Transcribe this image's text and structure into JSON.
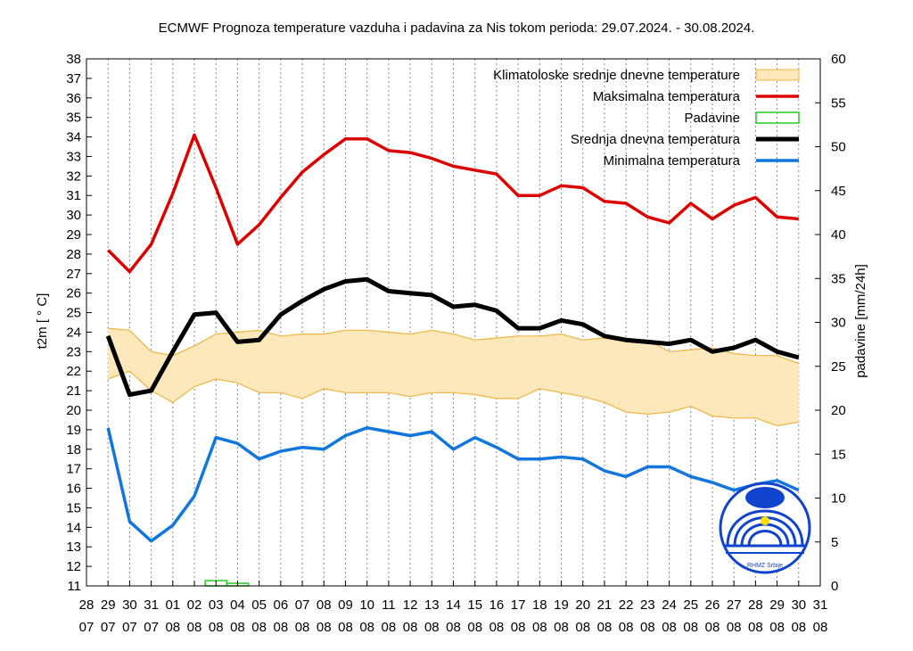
{
  "chart_data": {
    "type": "line",
    "title": "ECMWF Prognoza temperature  vazduha i padavina za Nis tokom perioda: 29.07.2024. - 30.08.2024.",
    "ylabel": "t2m [ ° C]",
    "y2label": "padavine [mm/24h]",
    "ylim": [
      11,
      38
    ],
    "y2lim": [
      0,
      60
    ],
    "yticks": [
      "11",
      "12",
      "13",
      "14",
      "15",
      "16",
      "17",
      "18",
      "19",
      "20",
      "21",
      "22",
      "23",
      "24",
      "25",
      "26",
      "27",
      "28",
      "29",
      "30",
      "31",
      "32",
      "33",
      "34",
      "35",
      "36",
      "37",
      "38"
    ],
    "y2ticks": [
      "0",
      "5",
      "10",
      "15",
      "20",
      "25",
      "30",
      "35",
      "40",
      "45",
      "50",
      "55",
      "60"
    ],
    "x_days": [
      "28",
      "29",
      "30",
      "31",
      "01",
      "02",
      "03",
      "04",
      "05",
      "06",
      "07",
      "08",
      "09",
      "10",
      "11",
      "12",
      "13",
      "14",
      "15",
      "16",
      "17",
      "18",
      "19",
      "20",
      "21",
      "22",
      "23",
      "24",
      "25",
      "26",
      "27",
      "28",
      "29",
      "30",
      "31"
    ],
    "x_months": [
      "07",
      "07",
      "07",
      "07",
      "08",
      "08",
      "08",
      "08",
      "08",
      "08",
      "08",
      "08",
      "08",
      "08",
      "08",
      "08",
      "08",
      "08",
      "08",
      "08",
      "08",
      "08",
      "08",
      "08",
      "08",
      "08",
      "08",
      "08",
      "08",
      "08",
      "08",
      "08",
      "08",
      "08",
      "08"
    ],
    "legend": [
      {
        "label": "Klimatoloske srednje dnevne temperature",
        "color": "#f5c060",
        "kind": "band"
      },
      {
        "label": "Maksimalna temperatura",
        "color": "#dd0000",
        "kind": "line"
      },
      {
        "label": "Padavine",
        "color": "#22cc22",
        "kind": "box"
      },
      {
        "label": "Srednja dnevna temperatura",
        "color": "#000000",
        "kind": "line"
      },
      {
        "label": "Minimalna temperatura",
        "color": "#1177dd",
        "kind": "line"
      }
    ],
    "series": [
      {
        "name": "Maksimalna temperatura",
        "color": "#dd0000",
        "x": [
          1,
          2,
          3,
          4,
          5,
          6,
          7,
          8,
          9,
          10,
          11,
          12,
          13,
          14,
          15,
          16,
          17,
          18,
          19,
          20,
          21,
          22,
          23,
          24,
          25,
          26,
          27,
          28,
          29,
          30,
          31,
          32,
          33
        ],
        "values": [
          28.2,
          27.1,
          28.5,
          31.1,
          34.1,
          31.4,
          28.5,
          29.5,
          30.9,
          32.2,
          33.1,
          33.9,
          33.9,
          33.3,
          33.2,
          32.9,
          32.5,
          32.3,
          32.1,
          31,
          31,
          31.5,
          31.4,
          30.7,
          30.6,
          29.9,
          29.6,
          30.6,
          29.8,
          30.5,
          30.9,
          29.9,
          29.8
        ]
      },
      {
        "name": "Srednja dnevna temperatura",
        "color": "#000000",
        "x": [
          1,
          2,
          3,
          4,
          5,
          6,
          7,
          8,
          9,
          10,
          11,
          12,
          13,
          14,
          15,
          16,
          17,
          18,
          19,
          20,
          21,
          22,
          23,
          24,
          25,
          26,
          27,
          28,
          29,
          30,
          31,
          32,
          33
        ],
        "values": [
          23.8,
          20.8,
          21,
          23,
          24.9,
          25,
          23.5,
          23.6,
          24.9,
          25.6,
          26.2,
          26.6,
          26.7,
          26.1,
          26,
          25.9,
          25.3,
          25.4,
          25.1,
          24.2,
          24.2,
          24.6,
          24.4,
          23.8,
          23.6,
          23.5,
          23.4,
          23.6,
          23,
          23.2,
          23.6,
          23,
          22.7
        ]
      },
      {
        "name": "Minimalna temperatura",
        "color": "#1177dd",
        "x": [
          1,
          2,
          3,
          4,
          5,
          6,
          7,
          8,
          9,
          10,
          11,
          12,
          13,
          14,
          15,
          16,
          17,
          18,
          19,
          20,
          21,
          22,
          23,
          24,
          25,
          26,
          27,
          28,
          29,
          30,
          31,
          32,
          33
        ],
        "values": [
          19.1,
          14.3,
          13.3,
          14.1,
          15.6,
          18.6,
          18.3,
          17.5,
          17.9,
          18.1,
          18,
          18.7,
          19.1,
          18.9,
          18.7,
          18.9,
          18,
          18.6,
          18.1,
          17.5,
          17.5,
          17.6,
          17.5,
          16.9,
          16.6,
          17.1,
          17.1,
          16.6,
          16.3,
          15.9,
          16.2,
          16.4,
          15.9
        ]
      },
      {
        "name": "Klimatoloske srednje dnevne temperature (gornja granica)",
        "color": "#f5c060",
        "x": [
          1,
          2,
          3,
          4,
          5,
          6,
          7,
          8,
          9,
          10,
          11,
          12,
          13,
          14,
          15,
          16,
          17,
          18,
          19,
          20,
          21,
          22,
          23,
          24,
          25,
          26,
          27,
          28,
          29,
          30,
          31,
          32,
          33
        ],
        "values": [
          24.2,
          24.1,
          23,
          22.8,
          23.3,
          23.9,
          24,
          24.1,
          23.8,
          23.9,
          23.9,
          24.1,
          24.1,
          24,
          23.9,
          24.1,
          23.9,
          23.6,
          23.7,
          23.8,
          23.8,
          23.9,
          23.6,
          23.7,
          23.5,
          23.6,
          23,
          23.1,
          23.2,
          22.9,
          22.8,
          22.8,
          22.4
        ]
      },
      {
        "name": "Klimatoloske srednje dnevne temperature (donja granica)",
        "color": "#f5c060",
        "x": [
          1,
          2,
          3,
          4,
          5,
          6,
          7,
          8,
          9,
          10,
          11,
          12,
          13,
          14,
          15,
          16,
          17,
          18,
          19,
          20,
          21,
          22,
          23,
          24,
          25,
          26,
          27,
          28,
          29,
          30,
          31,
          32,
          33
        ],
        "values": [
          21.6,
          22,
          21,
          20.4,
          21.2,
          21.6,
          21.4,
          20.9,
          20.9,
          20.6,
          21.1,
          20.9,
          20.9,
          20.9,
          20.7,
          20.9,
          20.9,
          20.8,
          20.6,
          20.6,
          21.1,
          20.9,
          20.7,
          20.4,
          19.9,
          19.8,
          19.9,
          20.2,
          19.7,
          19.6,
          19.6,
          19.2,
          19.4
        ]
      },
      {
        "name": "Padavine",
        "color": "#22cc22",
        "unit": "mm/24h",
        "x": [
          6,
          7
        ],
        "values": [
          0.6,
          0.3
        ]
      }
    ]
  },
  "logo": {
    "caption": "RHMZ Srbije"
  }
}
